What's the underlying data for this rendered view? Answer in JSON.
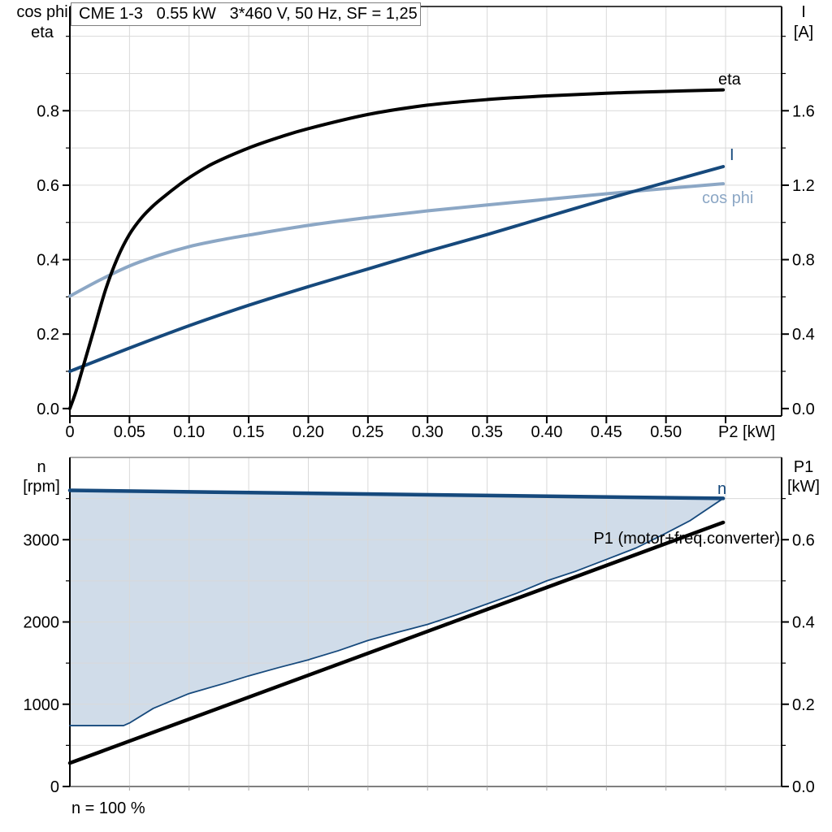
{
  "chart_data": [
    {
      "id": "motor-performance",
      "type": "line",
      "title": "CME 1-3   0.55 kW   3*460 V, 50 Hz, SF = 1,25",
      "x_axis": {
        "label": "P2 [kW]",
        "min": 0,
        "max": 0.597,
        "grid_step": 0.05,
        "major_ticks": [
          {
            "v": 0,
            "t": "0"
          },
          {
            "v": 0.05,
            "t": "0.05"
          },
          {
            "v": 0.1,
            "t": "0.10"
          },
          {
            "v": 0.15,
            "t": "0.15"
          },
          {
            "v": 0.2,
            "t": "0.20"
          },
          {
            "v": 0.25,
            "t": "0.25"
          },
          {
            "v": 0.3,
            "t": "0.30"
          },
          {
            "v": 0.35,
            "t": "0.35"
          },
          {
            "v": 0.4,
            "t": "0.40"
          },
          {
            "v": 0.45,
            "t": "0.45"
          },
          {
            "v": 0.5,
            "t": "0.50"
          },
          {
            "v": 0.55,
            "t": "P2 [kW]"
          }
        ]
      },
      "left_axis": {
        "label": [
          "cos phi",
          "eta"
        ],
        "min": -0.02,
        "max": 1.08,
        "grid_step": 0.1,
        "major_ticks": [
          {
            "v": 0.0,
            "t": "0.0"
          },
          {
            "v": 0.2,
            "t": "0.2"
          },
          {
            "v": 0.4,
            "t": "0.4"
          },
          {
            "v": 0.6,
            "t": "0.6"
          },
          {
            "v": 0.8,
            "t": "0.8"
          }
        ],
        "minor_ticks": [
          0.1,
          0.3,
          0.5,
          0.7,
          0.9,
          1.0
        ]
      },
      "right_axis": {
        "label": [
          "I",
          "[A]"
        ],
        "min": -0.04,
        "max": 2.16,
        "major_ticks": [
          {
            "v": 0.0,
            "t": "0.0"
          },
          {
            "v": 0.4,
            "t": "0.4"
          },
          {
            "v": 0.8,
            "t": "0.8"
          },
          {
            "v": 1.2,
            "t": "1.2"
          },
          {
            "v": 1.6,
            "t": "1.6"
          }
        ],
        "minor_ticks": [
          0.2,
          0.6,
          1.0,
          1.4,
          1.8,
          2.0
        ]
      },
      "series": [
        {
          "name": "eta",
          "color": "#000000",
          "width": 4,
          "axis": "left",
          "smooth": true,
          "points": [
            [
              0,
              0
            ],
            [
              0.005,
              0.045
            ],
            [
              0.01,
              0.1
            ],
            [
              0.015,
              0.155
            ],
            [
              0.02,
              0.21
            ],
            [
              0.03,
              0.32
            ],
            [
              0.04,
              0.405
            ],
            [
              0.05,
              0.468
            ],
            [
              0.06,
              0.512
            ],
            [
              0.07,
              0.545
            ],
            [
              0.08,
              0.572
            ],
            [
              0.09,
              0.597
            ],
            [
              0.1,
              0.62
            ],
            [
              0.12,
              0.658
            ],
            [
              0.15,
              0.7
            ],
            [
              0.175,
              0.728
            ],
            [
              0.2,
              0.752
            ],
            [
              0.25,
              0.79
            ],
            [
              0.3,
              0.815
            ],
            [
              0.35,
              0.83
            ],
            [
              0.4,
              0.84
            ],
            [
              0.45,
              0.847
            ],
            [
              0.5,
              0.852
            ],
            [
              0.548,
              0.856
            ]
          ]
        },
        {
          "name": "I",
          "color": "#16497C",
          "width": 4,
          "axis": "right",
          "smooth": true,
          "points": [
            [
              0,
              0.2
            ],
            [
              0.05,
              0.325
            ],
            [
              0.1,
              0.445
            ],
            [
              0.15,
              0.555
            ],
            [
              0.2,
              0.655
            ],
            [
              0.25,
              0.75
            ],
            [
              0.3,
              0.845
            ],
            [
              0.35,
              0.935
            ],
            [
              0.4,
              1.03
            ],
            [
              0.45,
              1.125
            ],
            [
              0.5,
              1.215
            ],
            [
              0.548,
              1.3
            ]
          ]
        },
        {
          "name": "cos phi",
          "color": "#8CA7C5",
          "width": 4,
          "axis": "left",
          "smooth": true,
          "points": [
            [
              0,
              0.302
            ],
            [
              0.025,
              0.345
            ],
            [
              0.05,
              0.383
            ],
            [
              0.075,
              0.412
            ],
            [
              0.1,
              0.435
            ],
            [
              0.125,
              0.452
            ],
            [
              0.15,
              0.466
            ],
            [
              0.2,
              0.492
            ],
            [
              0.25,
              0.513
            ],
            [
              0.3,
              0.531
            ],
            [
              0.35,
              0.547
            ],
            [
              0.4,
              0.562
            ],
            [
              0.45,
              0.577
            ],
            [
              0.5,
              0.591
            ],
            [
              0.548,
              0.604
            ]
          ]
        }
      ]
    },
    {
      "id": "speed-power",
      "type": "line-area",
      "x_axis": {
        "min": 0,
        "max": 0.597,
        "grid_step": 0.05
      },
      "left_axis": {
        "label": [
          "n",
          "[rpm]"
        ],
        "min": 0,
        "max": 4000,
        "grid_step": 500,
        "major_ticks": [
          {
            "v": 0,
            "t": "0"
          },
          {
            "v": 1000,
            "t": "1000"
          },
          {
            "v": 2000,
            "t": "2000"
          },
          {
            "v": 3000,
            "t": "3000"
          }
        ],
        "minor_ticks": [
          500,
          1500,
          2500,
          3500
        ]
      },
      "right_axis": {
        "label": [
          "P1",
          "[kW]"
        ],
        "min": 0,
        "max": 0.8,
        "major_ticks": [
          {
            "v": 0.0,
            "t": "0.0"
          },
          {
            "v": 0.2,
            "t": "0.2"
          },
          {
            "v": 0.4,
            "t": "0.4"
          },
          {
            "v": 0.6,
            "t": "0.6"
          }
        ],
        "minor_ticks": [
          0.1,
          0.3,
          0.5,
          0.7
        ]
      },
      "area_fill": "#D0DCE9",
      "footnote": "n = 100 %",
      "series": [
        {
          "name": "n",
          "color": "#16497C",
          "width": 4.5,
          "axis": "left",
          "smooth": false,
          "points": [
            [
              0,
              3600
            ],
            [
              0.548,
              3502
            ]
          ]
        },
        {
          "name": "n-lower-boundary",
          "color": "#16497C",
          "width": 1.8,
          "axis": "left",
          "smooth": false,
          "points": [
            [
              0,
              740
            ],
            [
              0.045,
              740
            ],
            [
              0.05,
              772
            ],
            [
              0.07,
              950
            ],
            [
              0.1,
              1130
            ],
            [
              0.13,
              1255
            ],
            [
              0.15,
              1345
            ],
            [
              0.175,
              1445
            ],
            [
              0.2,
              1540
            ],
            [
              0.225,
              1650
            ],
            [
              0.25,
              1775
            ],
            [
              0.275,
              1875
            ],
            [
              0.3,
              1970
            ],
            [
              0.325,
              2090
            ],
            [
              0.35,
              2220
            ],
            [
              0.375,
              2350
            ],
            [
              0.4,
              2500
            ],
            [
              0.425,
              2620
            ],
            [
              0.45,
              2760
            ],
            [
              0.475,
              2900
            ],
            [
              0.5,
              3080
            ],
            [
              0.52,
              3230
            ],
            [
              0.548,
              3502
            ]
          ]
        },
        {
          "name": "P1",
          "label": "P1 (motor+freq.converter)",
          "color": "#000000",
          "width": 4.5,
          "axis": "right",
          "smooth": false,
          "points": [
            [
              0,
              0.057
            ],
            [
              0.548,
              0.642
            ]
          ]
        }
      ]
    }
  ]
}
